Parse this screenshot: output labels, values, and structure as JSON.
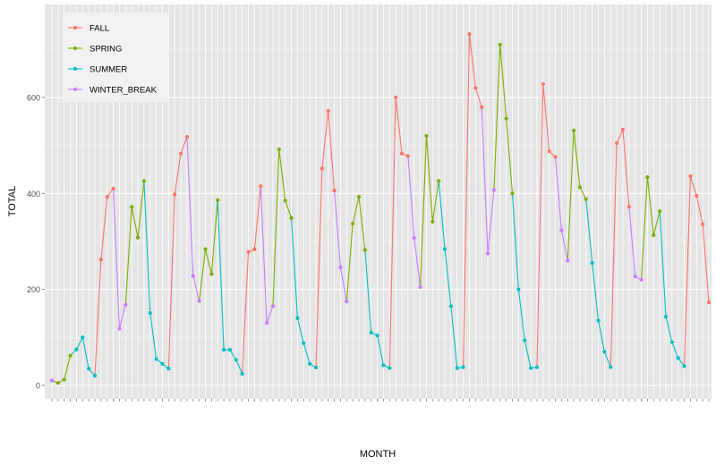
{
  "chart_data": {
    "type": "line",
    "title": "",
    "xlabel": "MONTH",
    "ylabel": "TOTAL",
    "ylim": [
      -20,
      760
    ],
    "yticks": [
      0,
      200,
      400,
      600
    ],
    "grid": true,
    "legend_position": "top-left",
    "x_tick_labels_rotated": true,
    "series": [
      {
        "name": "FALL",
        "color": "#F8766D"
      },
      {
        "name": "SPRING",
        "color": "#7CAE00"
      },
      {
        "name": "SUMMER",
        "color": "#00BFC4"
      },
      {
        "name": "WINTER_BREAK",
        "color": "#C77CFF"
      }
    ],
    "points": [
      {
        "v": 10,
        "s": 3
      },
      {
        "v": 5,
        "s": 1
      },
      {
        "v": 12,
        "s": 1
      },
      {
        "v": 62,
        "s": 1
      },
      {
        "v": 75,
        "s": 2
      },
      {
        "v": 100,
        "s": 2
      },
      {
        "v": 35,
        "s": 2
      },
      {
        "v": 20,
        "s": 2
      },
      {
        "v": 262,
        "s": 0
      },
      {
        "v": 393,
        "s": 0
      },
      {
        "v": 410,
        "s": 0
      },
      {
        "v": 118,
        "s": 3
      },
      {
        "v": 168,
        "s": 3
      },
      {
        "v": 372,
        "s": 1
      },
      {
        "v": 308,
        "s": 1
      },
      {
        "v": 426,
        "s": 1
      },
      {
        "v": 151,
        "s": 2
      },
      {
        "v": 55,
        "s": 2
      },
      {
        "v": 45,
        "s": 2
      },
      {
        "v": 35,
        "s": 2
      },
      {
        "v": 398,
        "s": 0
      },
      {
        "v": 483,
        "s": 0
      },
      {
        "v": 518,
        "s": 0
      },
      {
        "v": 228,
        "s": 3
      },
      {
        "v": 176,
        "s": 3
      },
      {
        "v": 284,
        "s": 1
      },
      {
        "v": 232,
        "s": 1
      },
      {
        "v": 386,
        "s": 1
      },
      {
        "v": 74,
        "s": 2
      },
      {
        "v": 74,
        "s": 2
      },
      {
        "v": 53,
        "s": 2
      },
      {
        "v": 24,
        "s": 2
      },
      {
        "v": 278,
        "s": 0
      },
      {
        "v": 284,
        "s": 0
      },
      {
        "v": 415,
        "s": 0
      },
      {
        "v": 130,
        "s": 3
      },
      {
        "v": 165,
        "s": 3
      },
      {
        "v": 492,
        "s": 1
      },
      {
        "v": 385,
        "s": 1
      },
      {
        "v": 349,
        "s": 1
      },
      {
        "v": 140,
        "s": 2
      },
      {
        "v": 88,
        "s": 2
      },
      {
        "v": 45,
        "s": 2
      },
      {
        "v": 37,
        "s": 2
      },
      {
        "v": 452,
        "s": 0
      },
      {
        "v": 572,
        "s": 0
      },
      {
        "v": 406,
        "s": 0
      },
      {
        "v": 246,
        "s": 3
      },
      {
        "v": 175,
        "s": 3
      },
      {
        "v": 337,
        "s": 1
      },
      {
        "v": 393,
        "s": 1
      },
      {
        "v": 282,
        "s": 1
      },
      {
        "v": 110,
        "s": 2
      },
      {
        "v": 104,
        "s": 2
      },
      {
        "v": 42,
        "s": 2
      },
      {
        "v": 36,
        "s": 2
      },
      {
        "v": 600,
        "s": 0
      },
      {
        "v": 483,
        "s": 0
      },
      {
        "v": 478,
        "s": 0
      },
      {
        "v": 307,
        "s": 3
      },
      {
        "v": 205,
        "s": 3
      },
      {
        "v": 520,
        "s": 1
      },
      {
        "v": 341,
        "s": 1
      },
      {
        "v": 426,
        "s": 1
      },
      {
        "v": 284,
        "s": 2
      },
      {
        "v": 165,
        "s": 2
      },
      {
        "v": 36,
        "s": 2
      },
      {
        "v": 38,
        "s": 2
      },
      {
        "v": 732,
        "s": 0
      },
      {
        "v": 620,
        "s": 0
      },
      {
        "v": 580,
        "s": 0
      },
      {
        "v": 275,
        "s": 3
      },
      {
        "v": 407,
        "s": 3
      },
      {
        "v": 710,
        "s": 1
      },
      {
        "v": 556,
        "s": 1
      },
      {
        "v": 400,
        "s": 1
      },
      {
        "v": 200,
        "s": 2
      },
      {
        "v": 94,
        "s": 2
      },
      {
        "v": 36,
        "s": 2
      },
      {
        "v": 38,
        "s": 2
      },
      {
        "v": 628,
        "s": 0
      },
      {
        "v": 488,
        "s": 0
      },
      {
        "v": 476,
        "s": 0
      },
      {
        "v": 323,
        "s": 3
      },
      {
        "v": 260,
        "s": 3
      },
      {
        "v": 531,
        "s": 1
      },
      {
        "v": 413,
        "s": 1
      },
      {
        "v": 388,
        "s": 1
      },
      {
        "v": 255,
        "s": 2
      },
      {
        "v": 135,
        "s": 2
      },
      {
        "v": 70,
        "s": 2
      },
      {
        "v": 38,
        "s": 2
      },
      {
        "v": 505,
        "s": 0
      },
      {
        "v": 533,
        "s": 0
      },
      {
        "v": 372,
        "s": 0
      },
      {
        "v": 227,
        "s": 3
      },
      {
        "v": 220,
        "s": 3
      },
      {
        "v": 434,
        "s": 1
      },
      {
        "v": 313,
        "s": 1
      },
      {
        "v": 363,
        "s": 1
      },
      {
        "v": 143,
        "s": 2
      },
      {
        "v": 90,
        "s": 2
      },
      {
        "v": 57,
        "s": 2
      },
      {
        "v": 40,
        "s": 2
      },
      {
        "v": 436,
        "s": 0
      },
      {
        "v": 395,
        "s": 0
      },
      {
        "v": 336,
        "s": 0
      },
      {
        "v": 173,
        "s": 0
      }
    ]
  }
}
